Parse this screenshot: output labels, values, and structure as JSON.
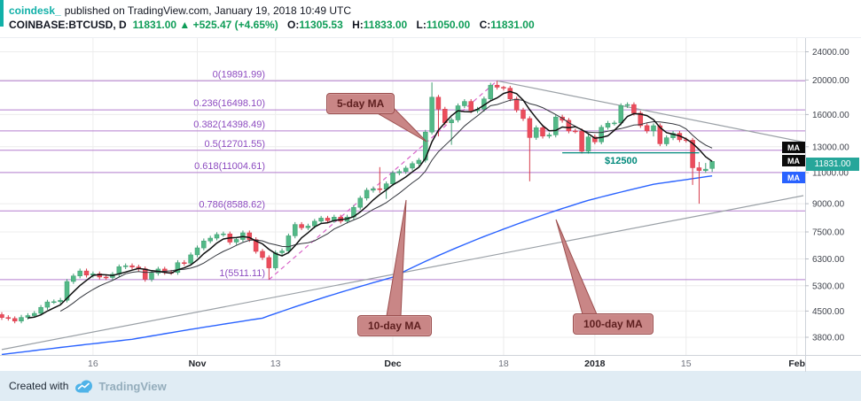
{
  "header": {
    "brand": "coindesk_",
    "published": "published on TradingView.com, January 19, 2018 10:49 UTC",
    "symbol": "COINBASE:BTCUSD, D",
    "last": "11831.00",
    "change": "▲ +525.47 (+4.65%)",
    "o_label": "O:",
    "o": "11305.53",
    "h_label": "H:",
    "h": "11833.00",
    "l_label": "L:",
    "l": "11050.00",
    "c_label": "C:",
    "c": "11831.00"
  },
  "footer": {
    "created_with": "Created with",
    "brand": "TradingView"
  },
  "colors": {
    "up": "#53b987",
    "down": "#eb4d5c",
    "up_border": "#3f9d72",
    "down_border": "#d63a4a",
    "ma5": "#111111",
    "ma10": "#33363d",
    "ma100": "#2962ff",
    "fib_line": "#b57ecf",
    "fib_label": "#8d4bc0",
    "fib_diagonal": "#d863c8",
    "trendline": "#9aa0a6",
    "support": "#00897b",
    "grid": "#ececec",
    "axis_text": "#40444d",
    "axis_minor": "#6f737e",
    "axis_major": "#22252b",
    "badge_black": "#0b0b0b",
    "badge_blue": "#2962ff",
    "badge_price": "#26a69a",
    "callout_bg": "#c98686",
    "callout_border": "#9c4f4f",
    "callout_text": "#5e1f1f",
    "header_green": "#0f9d58",
    "brand_teal": "#11b0a8"
  },
  "chart_data": {
    "type": "candlestick",
    "symbol": "COINBASE:BTCUSD",
    "interval": "D",
    "scale": "log",
    "price_axis": [
      {
        "label": "24000.00",
        "value": 24000
      },
      {
        "label": "20000.00",
        "value": 20000
      },
      {
        "label": "16000.00",
        "value": 16000
      },
      {
        "label": "13000.00",
        "value": 13000
      },
      {
        "label": "11000.00",
        "value": 11000
      },
      {
        "label": "9000.00",
        "value": 9000
      },
      {
        "label": "7500.00",
        "value": 7500
      },
      {
        "label": "6300.00",
        "value": 6300
      },
      {
        "label": "5300.00",
        "value": 5300
      },
      {
        "label": "4500.00",
        "value": 4500
      },
      {
        "label": "3800.00",
        "value": 3800
      }
    ],
    "time_axis": [
      {
        "label": "16",
        "day": 14,
        "major": false
      },
      {
        "label": "Nov",
        "day": 30,
        "major": true
      },
      {
        "label": "13",
        "day": 42,
        "major": false
      },
      {
        "label": "Dec",
        "day": 60,
        "major": true
      },
      {
        "label": "18",
        "day": 77,
        "major": false
      },
      {
        "label": "2018",
        "day": 91,
        "major": true
      },
      {
        "label": "15",
        "day": 105,
        "major": false
      },
      {
        "label": "Feb",
        "day": 122,
        "major": true
      }
    ],
    "fib_levels": [
      {
        "label": "0(19891.99)",
        "value": 19891.99
      },
      {
        "label": "0.236(16498.10)",
        "value": 16498.1
      },
      {
        "label": "0.382(14398.49)",
        "value": 14398.49
      },
      {
        "label": "0.5(12701.55)",
        "value": 12701.55
      },
      {
        "label": "0.618(11004.61)",
        "value": 11004.61
      },
      {
        "label": "0.786(8588.62)",
        "value": 8588.62
      },
      {
        "label": "1(5511.11)",
        "value": 5511.11
      }
    ],
    "fib_diagonal": {
      "from_day": 41,
      "from_price": 5511.11,
      "to_day": 76,
      "to_price": 19891.99
    },
    "trendlines": [
      {
        "from_day": 0,
        "from_price": 3510,
        "to_day": 123,
        "to_price": 9480
      },
      {
        "from_day": 76,
        "from_price": 19890,
        "to_day": 123,
        "to_price": 13400
      }
    ],
    "ma_periods": {
      "ma5": 5,
      "ma10": 10
    },
    "ma100_points": [
      [
        0,
        3400
      ],
      [
        20,
        3750
      ],
      [
        40,
        4300
      ],
      [
        60,
        5600
      ],
      [
        80,
        8000
      ],
      [
        90,
        9200
      ],
      [
        100,
        10200
      ],
      [
        109,
        10770
      ]
    ],
    "support_line": {
      "text": "$12500",
      "price": 12500,
      "from_day": 86,
      "to_day": 107
    },
    "callouts": [
      {
        "label": "5-day MA"
      },
      {
        "label": "10-day MA"
      },
      {
        "label": "100-day MA"
      }
    ],
    "badges": {
      "ma": "MA",
      "price": "11831.00"
    },
    "candles": [
      [
        4400,
        4470,
        4250,
        4317
      ],
      [
        4317,
        4380,
        4230,
        4290
      ],
      [
        4290,
        4350,
        4160,
        4220
      ],
      [
        4220,
        4390,
        4160,
        4320
      ],
      [
        4320,
        4440,
        4260,
        4370
      ],
      [
        4370,
        4500,
        4310,
        4435
      ],
      [
        4435,
        4680,
        4370,
        4610
      ],
      [
        4610,
        4840,
        4540,
        4772
      ],
      [
        4772,
        4850,
        4710,
        4781
      ],
      [
        4781,
        4900,
        4710,
        4826
      ],
      [
        4826,
        5530,
        4760,
        5446
      ],
      [
        5446,
        5730,
        5360,
        5647
      ],
      [
        5647,
        5920,
        5560,
        5831
      ],
      [
        5831,
        5920,
        5590,
        5678
      ],
      [
        5678,
        5810,
        5590,
        5725
      ],
      [
        5725,
        5810,
        5520,
        5605
      ],
      [
        5605,
        5690,
        5500,
        5590
      ],
      [
        5590,
        5790,
        5500,
        5708
      ],
      [
        5708,
        6080,
        5620,
        5993
      ],
      [
        5993,
        6120,
        5900,
        6031
      ],
      [
        6031,
        6120,
        5890,
        5983
      ],
      [
        5983,
        6070,
        5820,
        5914
      ],
      [
        5914,
        6000,
        5440,
        5526
      ],
      [
        5526,
        5840,
        5440,
        5750
      ],
      [
        5750,
        5990,
        5660,
        5904
      ],
      [
        5904,
        5990,
        5690,
        5780
      ],
      [
        5780,
        5870,
        5690,
        5775
      ],
      [
        5775,
        6250,
        5690,
        6153
      ],
      [
        6153,
        6250,
        6030,
        6130
      ],
      [
        6130,
        6570,
        6030,
        6468
      ],
      [
        6468,
        6870,
        6370,
        6767
      ],
      [
        6767,
        7190,
        6660,
        7078
      ],
      [
        7078,
        7320,
        6970,
        7207
      ],
      [
        7207,
        7490,
        7100,
        7379
      ],
      [
        7379,
        7520,
        7270,
        7407
      ],
      [
        7407,
        7520,
        6910,
        7022
      ],
      [
        7022,
        7250,
        6910,
        7144
      ],
      [
        7144,
        7570,
        7040,
        7459
      ],
      [
        7459,
        7570,
        7030,
        7143
      ],
      [
        7143,
        7250,
        6520,
        6618
      ],
      [
        6618,
        6720,
        6260,
        6357
      ],
      [
        6357,
        6450,
        5511,
        5950
      ],
      [
        5950,
        6660,
        5860,
        6559
      ],
      [
        6559,
        6740,
        6460,
        6635
      ],
      [
        6635,
        7420,
        6530,
        7315
      ],
      [
        7315,
        7990,
        7200,
        7871
      ],
      [
        7871,
        7990,
        7590,
        7708
      ],
      [
        7708,
        7910,
        7590,
        7790
      ],
      [
        7790,
        8160,
        7670,
        8036
      ],
      [
        8036,
        8320,
        7910,
        8200
      ],
      [
        8200,
        8320,
        7950,
        8071
      ],
      [
        8071,
        8380,
        7950,
        8253
      ],
      [
        8253,
        8380,
        7920,
        8038
      ],
      [
        8038,
        8380,
        7920,
        8253
      ],
      [
        8253,
        8920,
        8130,
        8790
      ],
      [
        8790,
        9470,
        8660,
        9330
      ],
      [
        9330,
        9970,
        9190,
        9818
      ],
      [
        9818,
        10060,
        9670,
        9916
      ],
      [
        9916,
        11395,
        9650,
        9879
      ],
      [
        9879,
        10390,
        9290,
        10233
      ],
      [
        10233,
        11140,
        10080,
        10975
      ],
      [
        10975,
        11240,
        10810,
        11074
      ],
      [
        11074,
        11490,
        10910,
        11323
      ],
      [
        11323,
        11830,
        11150,
        11657
      ],
      [
        11657,
        12090,
        11480,
        11916
      ],
      [
        11916,
        14500,
        11740,
        14291
      ],
      [
        14291,
        19697,
        14080,
        17899
      ],
      [
        17899,
        18170,
        13900,
        16569
      ],
      [
        16569,
        16820,
        14950,
        15178
      ],
      [
        15178,
        15690,
        13160,
        15455
      ],
      [
        15455,
        17190,
        15220,
        16936
      ],
      [
        16936,
        17680,
        16680,
        17415
      ],
      [
        17415,
        17680,
        16160,
        16408
      ],
      [
        16408,
        16810,
        16160,
        16564
      ],
      [
        16564,
        17970,
        16310,
        17706
      ],
      [
        17706,
        19630,
        17440,
        19343
      ],
      [
        19343,
        19892,
        18800,
        19086
      ],
      [
        19086,
        19260,
        18690,
        18972
      ],
      [
        18972,
        19260,
        17430,
        17700
      ],
      [
        17700,
        17960,
        16220,
        16466
      ],
      [
        16466,
        16710,
        15360,
        15600
      ],
      [
        15600,
        15830,
        10400,
        13800
      ],
      [
        13800,
        14920,
        13590,
        14699
      ],
      [
        14699,
        14920,
        13710,
        13925
      ],
      [
        13925,
        14240,
        13720,
        14026
      ],
      [
        14026,
        15980,
        13810,
        15745
      ],
      [
        15745,
        15980,
        15180,
        15416
      ],
      [
        15416,
        15650,
        14180,
        14398
      ],
      [
        14398,
        14610,
        14170,
        14392
      ],
      [
        14392,
        14610,
        12440,
        12629
      ],
      [
        12629,
        14060,
        12440,
        13850
      ],
      [
        13850,
        14060,
        13210,
        13412
      ],
      [
        13412,
        14960,
        13210,
        14740
      ],
      [
        14740,
        15360,
        14520,
        15134
      ],
      [
        15134,
        15380,
        14910,
        15155
      ],
      [
        15155,
        17210,
        14920,
        16960
      ],
      [
        16960,
        17320,
        16700,
        17069
      ],
      [
        17069,
        17320,
        15900,
        16150
      ],
      [
        16150,
        16390,
        14680,
        14902
      ],
      [
        14902,
        15120,
        14180,
        14400
      ],
      [
        14400,
        15110,
        13900,
        14890
      ],
      [
        14890,
        15110,
        13050,
        13250
      ],
      [
        13250,
        13990,
        13050,
        13780
      ],
      [
        13780,
        14390,
        13570,
        14180
      ],
      [
        14180,
        14390,
        13390,
        13600
      ],
      [
        13600,
        13800,
        13350,
        13560
      ],
      [
        13560,
        13760,
        10160,
        11350
      ],
      [
        11350,
        11790,
        9000,
        11150
      ],
      [
        11150,
        11710,
        10980,
        11250
      ],
      [
        11305.53,
        11833,
        11050,
        11831
      ]
    ]
  }
}
